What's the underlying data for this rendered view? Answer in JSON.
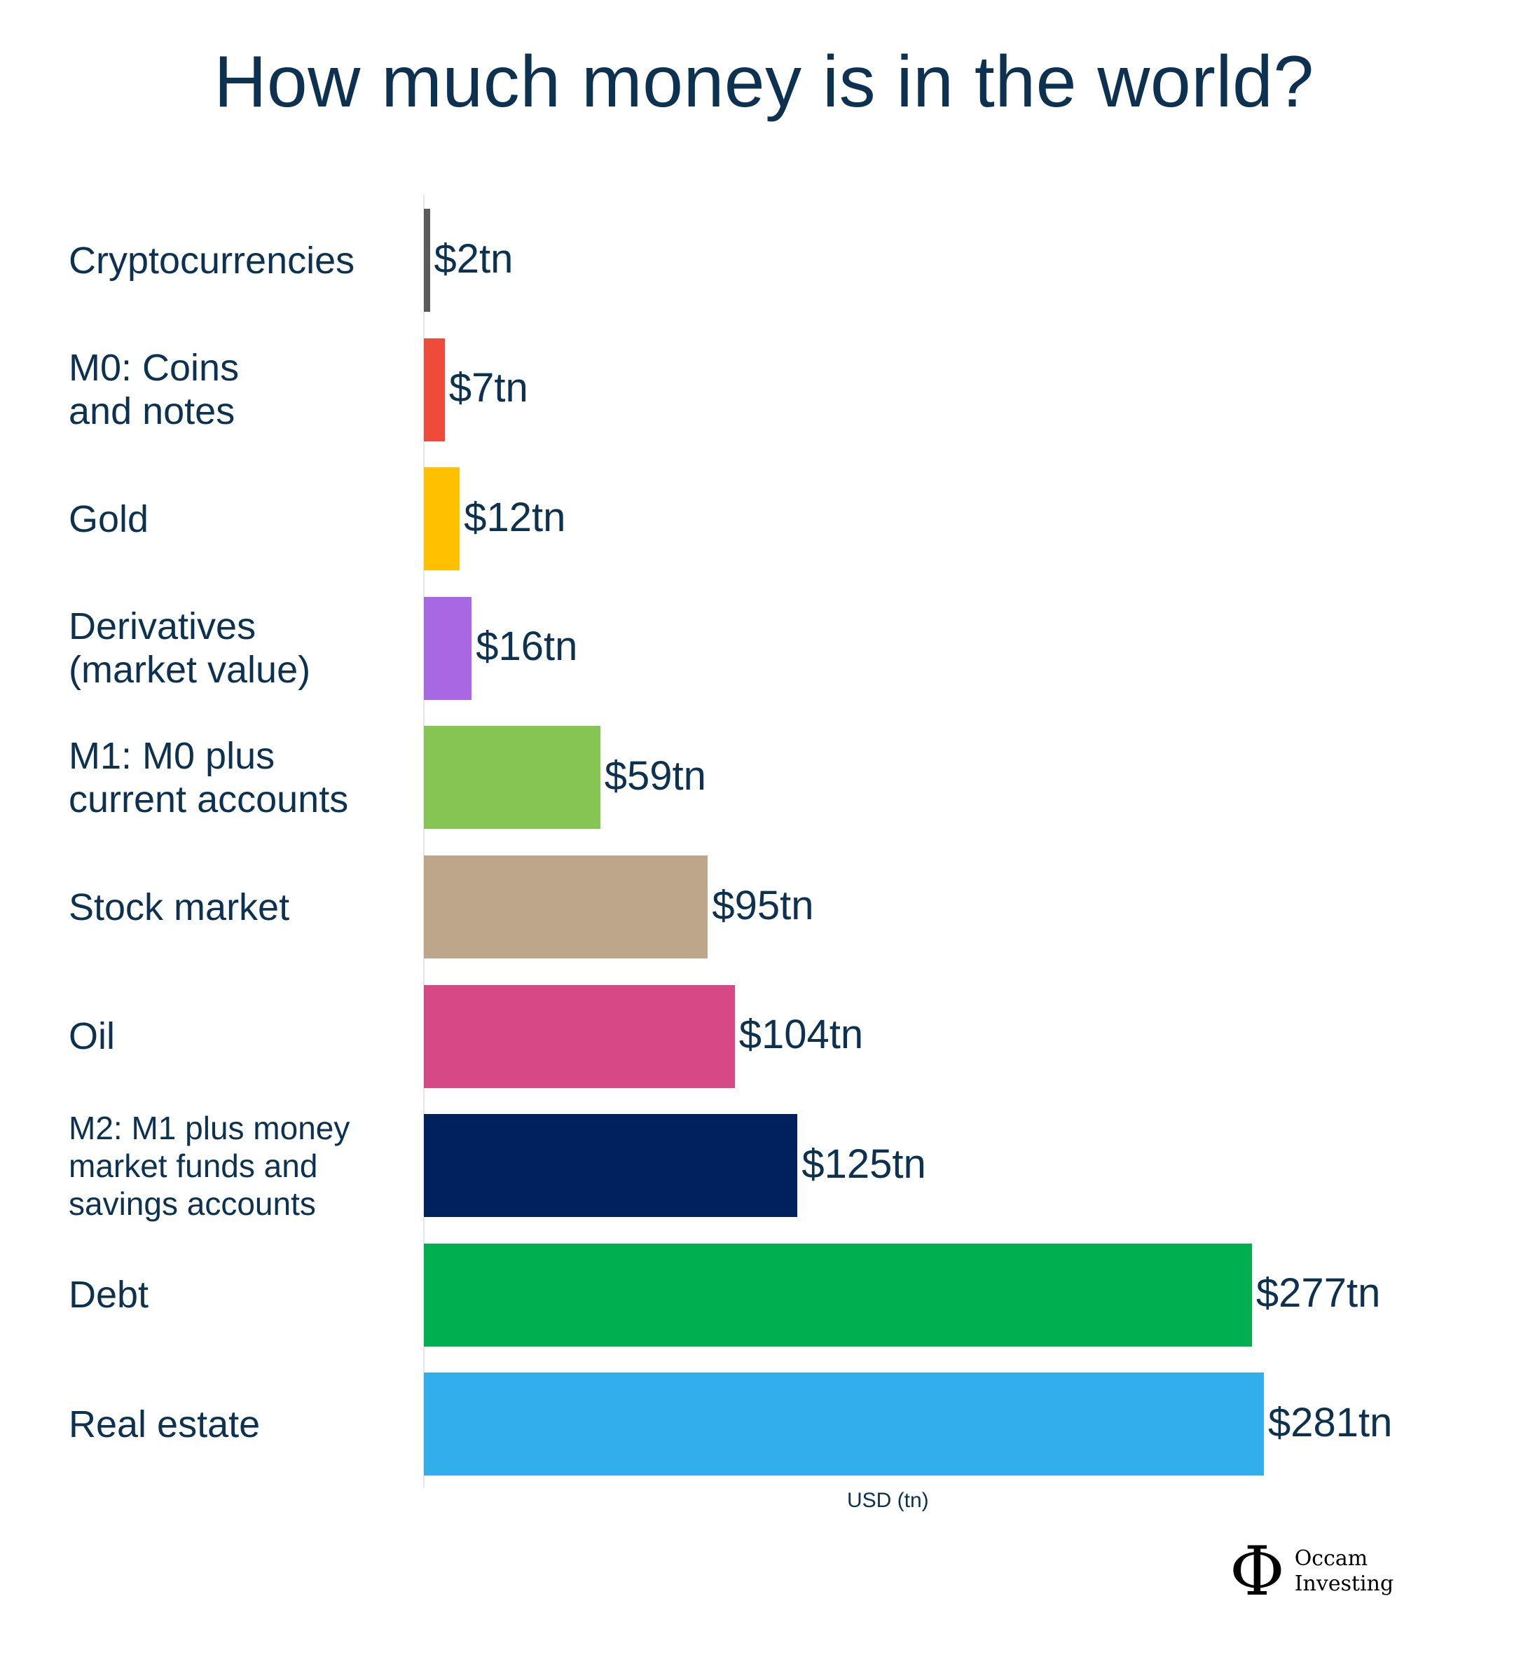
{
  "chart_data": {
    "type": "bar",
    "orientation": "horizontal",
    "title": "How much money is in the world?",
    "xlabel": "USD (tn)",
    "ylabel": "",
    "xlim": [
      0,
      281
    ],
    "grid": false,
    "categories": [
      "Cryptocurrencies",
      "M0: Coins\nand notes",
      "Gold",
      "Derivatives\n(market value)",
      "M1: M0 plus\ncurrent accounts",
      "Stock market",
      "Oil",
      "M2: M1 plus money\nmarket funds and\nsavings accounts",
      "Debt",
      "Real estate"
    ],
    "values": [
      2,
      7,
      12,
      16,
      59,
      95,
      104,
      125,
      277,
      281
    ],
    "data_labels": [
      "$2tn",
      "$7tn",
      "$12tn",
      "$16tn",
      "$59tn",
      "$95tn",
      "$104tn",
      "$125tn",
      "$277tn",
      "$281tn"
    ],
    "colors": [
      "#5a5a5a",
      "#f04b3a",
      "#ffc000",
      "#a868e3",
      "#84c553",
      "#bda689",
      "#d64986",
      "#00215e",
      "#00af50",
      "#31aeec"
    ]
  },
  "logo": {
    "text_line1": "Occam",
    "text_line2": "Investing",
    "symbol": "Φ"
  }
}
